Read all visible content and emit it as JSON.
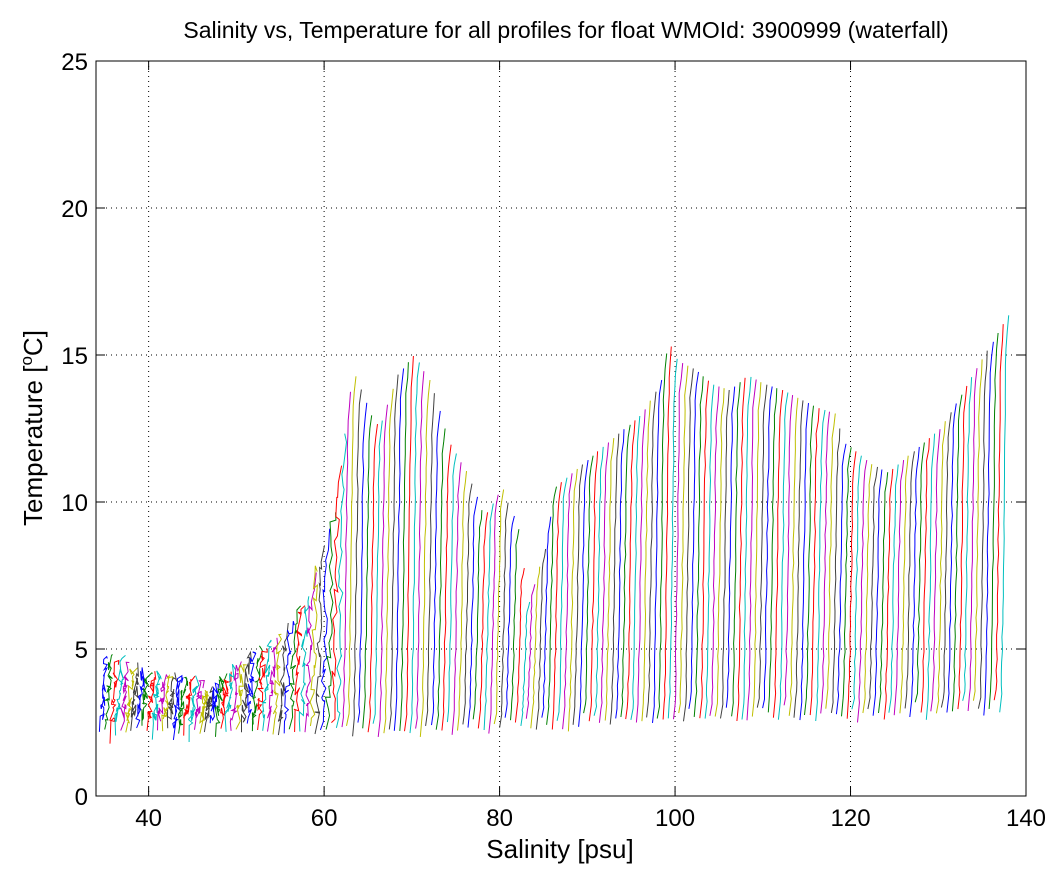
{
  "chart_data": {
    "type": "line",
    "title": "Salinity vs, Temperature for all profiles for float WMOId: 3900999 (waterfall)",
    "xlabel": "Salinity [psu]",
    "ylabel_main": "Temperature [",
    "ylabel_sup": "o",
    "ylabel_end": "C]",
    "xlim": [
      34,
      140
    ],
    "ylim": [
      0,
      25
    ],
    "xticks": [
      40,
      60,
      80,
      100,
      120,
      140
    ],
    "yticks": [
      0,
      5,
      10,
      15,
      20,
      25
    ],
    "grid": true,
    "waterfall": {
      "profile_count": 172,
      "offset_per_profile_psu": 0.6,
      "start_x": 34.5,
      "profile_width_psu": 1.0,
      "series_colors": [
        "#0000ff",
        "#008000",
        "#ff0000",
        "#00bfbf",
        "#bf00bf",
        "#bfbf00",
        "#404040"
      ],
      "surface_temperature_envelope": [
        [
          34.5,
          4.8
        ],
        [
          40,
          4.2
        ],
        [
          45,
          4.0
        ],
        [
          47,
          3.5
        ],
        [
          50,
          4.5
        ],
        [
          55,
          5.5
        ],
        [
          58,
          7
        ],
        [
          60,
          8.5
        ],
        [
          61,
          10
        ],
        [
          62,
          12
        ],
        [
          63,
          14.5
        ],
        [
          65,
          13
        ],
        [
          66,
          12.5
        ],
        [
          68,
          14.3
        ],
        [
          70,
          15
        ],
        [
          72,
          14
        ],
        [
          74,
          12
        ],
        [
          76,
          11
        ],
        [
          78,
          9.5
        ],
        [
          80,
          10.5
        ],
        [
          82,
          9
        ],
        [
          83,
          6.5
        ],
        [
          85,
          8.5
        ],
        [
          86,
          10.5
        ],
        [
          88,
          11
        ],
        [
          90,
          11.5
        ],
        [
          92,
          12
        ],
        [
          94,
          12.5
        ],
        [
          96,
          13
        ],
        [
          98,
          14
        ],
        [
          99,
          15.5
        ],
        [
          100,
          14.8
        ],
        [
          102,
          14.5
        ],
        [
          104,
          14
        ],
        [
          106,
          13.8
        ],
        [
          108,
          14.3
        ],
        [
          110,
          14
        ],
        [
          112,
          13.8
        ],
        [
          114,
          13.5
        ],
        [
          116,
          13.2
        ],
        [
          118,
          13
        ],
        [
          119,
          12
        ],
        [
          120,
          11.8
        ],
        [
          122,
          11.3
        ],
        [
          124,
          11
        ],
        [
          126,
          11.5
        ],
        [
          128,
          12
        ],
        [
          130,
          12.5
        ],
        [
          132,
          13.5
        ],
        [
          134,
          14.5
        ],
        [
          136,
          15.5
        ],
        [
          138,
          16.5
        ],
        [
          139,
          17
        ]
      ],
      "bottom_temperature_envelope": [
        [
          34.5,
          2.6
        ],
        [
          45,
          2.6
        ],
        [
          55,
          2.8
        ],
        [
          60,
          2.7
        ],
        [
          62,
          2.7
        ],
        [
          70,
          2.8
        ],
        [
          80,
          2.9
        ],
        [
          90,
          3.0
        ],
        [
          100,
          3.2
        ],
        [
          110,
          3.3
        ],
        [
          120,
          3.3
        ],
        [
          130,
          3.4
        ],
        [
          139,
          3.5
        ]
      ]
    }
  }
}
